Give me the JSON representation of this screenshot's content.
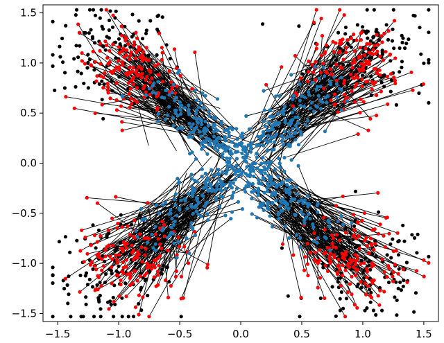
{
  "chart_data": {
    "type": "scatter",
    "title": "",
    "xlabel": "",
    "ylabel": "",
    "xlim": [
      -1.62,
      1.62
    ],
    "ylim": [
      -1.58,
      1.58
    ],
    "xticks": [
      -1.5,
      -1.0,
      -0.5,
      0.0,
      0.5,
      1.0,
      1.5
    ],
    "xtick_labels": [
      "−1.5",
      "−1.0",
      "−0.5",
      "0.0",
      "0.5",
      "1.0",
      "1.5"
    ],
    "yticks": [
      -1.5,
      -1.0,
      -0.5,
      0.0,
      0.5,
      1.0,
      1.5
    ],
    "ytick_labels": [
      "−1.5",
      "−1.0",
      "−0.5",
      "0.0",
      "0.5",
      "1.0",
      "1.5"
    ],
    "grid": false,
    "legend": "none",
    "colors": {
      "source_points": "#000000",
      "red_points": "#ff0000",
      "blue_points": "#1f77b4",
      "connector_lines": "#000000"
    },
    "series": [
      {
        "marker_color": "#000000",
        "description_kind": "outer cloud",
        "clusters": [
          {
            "center": [
              -1.05,
              1.1
            ],
            "spread": [
              0.25,
              0.25
            ],
            "count": 120
          },
          {
            "center": [
              1.05,
              1.1
            ],
            "spread": [
              0.25,
              0.25
            ],
            "count": 120
          },
          {
            "center": [
              -1.05,
              -1.1
            ],
            "spread": [
              0.25,
              0.25
            ],
            "count": 120
          },
          {
            "center": [
              1.05,
              -1.1
            ],
            "spread": [
              0.25,
              0.25
            ],
            "count": 120
          }
        ]
      },
      {
        "marker_color": "#ff0000",
        "description_kind": "red",
        "clusters": [
          {
            "center": [
              -0.9,
              0.95
            ],
            "spread": [
              0.22,
              0.22
            ],
            "count": 160
          },
          {
            "center": [
              0.9,
              0.95
            ],
            "spread": [
              0.22,
              0.22
            ],
            "count": 160
          },
          {
            "center": [
              -0.9,
              -0.95
            ],
            "spread": [
              0.22,
              0.22
            ],
            "count": 160
          },
          {
            "center": [
              0.9,
              -0.95
            ],
            "spread": [
              0.22,
              0.22
            ],
            "count": 160
          }
        ]
      },
      {
        "marker_color": "#1f77b4",
        "description_kind": "blue",
        "arms": [
          {
            "from": [
              0.0,
              0.0
            ],
            "to": [
              -0.7,
              0.75
            ],
            "count": 130
          },
          {
            "from": [
              0.0,
              0.0
            ],
            "to": [
              0.7,
              0.75
            ],
            "count": 130
          },
          {
            "from": [
              0.0,
              0.0
            ],
            "to": [
              -0.7,
              -0.75
            ],
            "count": 130
          },
          {
            "from": [
              0.0,
              0.0
            ],
            "to": [
              0.7,
              -0.75
            ],
            "count": 130
          }
        ]
      }
    ]
  }
}
